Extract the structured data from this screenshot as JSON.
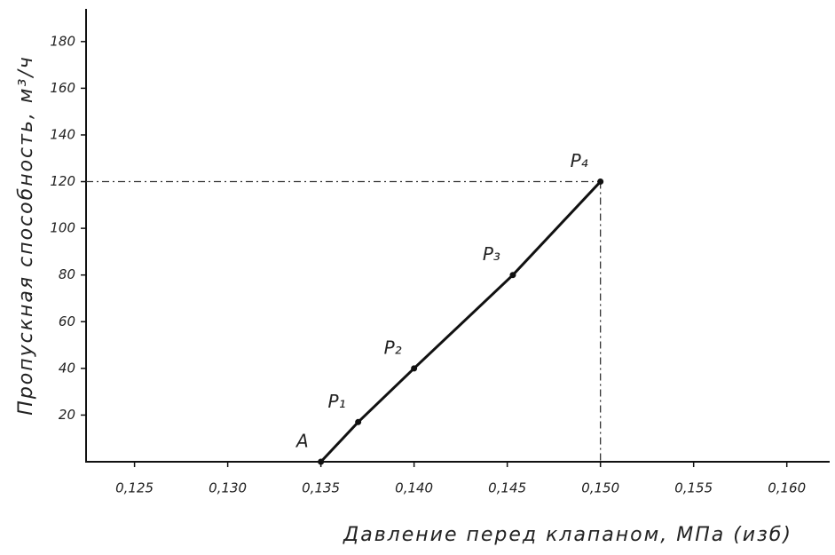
{
  "chart_data": {
    "type": "line",
    "x_label": "Давление перед клапаном, МПа (изб)",
    "y_label": "Пропускная способность, м³/ч",
    "x": [
      0.135,
      0.137,
      0.14,
      0.1453,
      0.15
    ],
    "series": [
      {
        "color": "#111111",
        "values": [
          0,
          17,
          40,
          80,
          120
        ]
      }
    ],
    "point_labels": [
      "A",
      "P₁",
      "P₂",
      "P₃",
      "P₄"
    ],
    "reference": {
      "x": 0.15,
      "y": 120
    },
    "xlim": [
      0.1224,
      0.1623
    ],
    "ylim": [
      0,
      194
    ],
    "xticks": [
      {
        "value": 0.125,
        "label": "0,125"
      },
      {
        "value": 0.13,
        "label": "0,130"
      },
      {
        "value": 0.135,
        "label": "0,135"
      },
      {
        "value": 0.14,
        "label": "0,140"
      },
      {
        "value": 0.145,
        "label": "0,145"
      },
      {
        "value": 0.15,
        "label": "0,150"
      },
      {
        "value": 0.155,
        "label": "0,155"
      },
      {
        "value": 0.16,
        "label": "0,160"
      }
    ],
    "yticks": [
      20,
      40,
      60,
      80,
      100,
      120,
      140,
      160,
      180
    ],
    "grid": false
  }
}
